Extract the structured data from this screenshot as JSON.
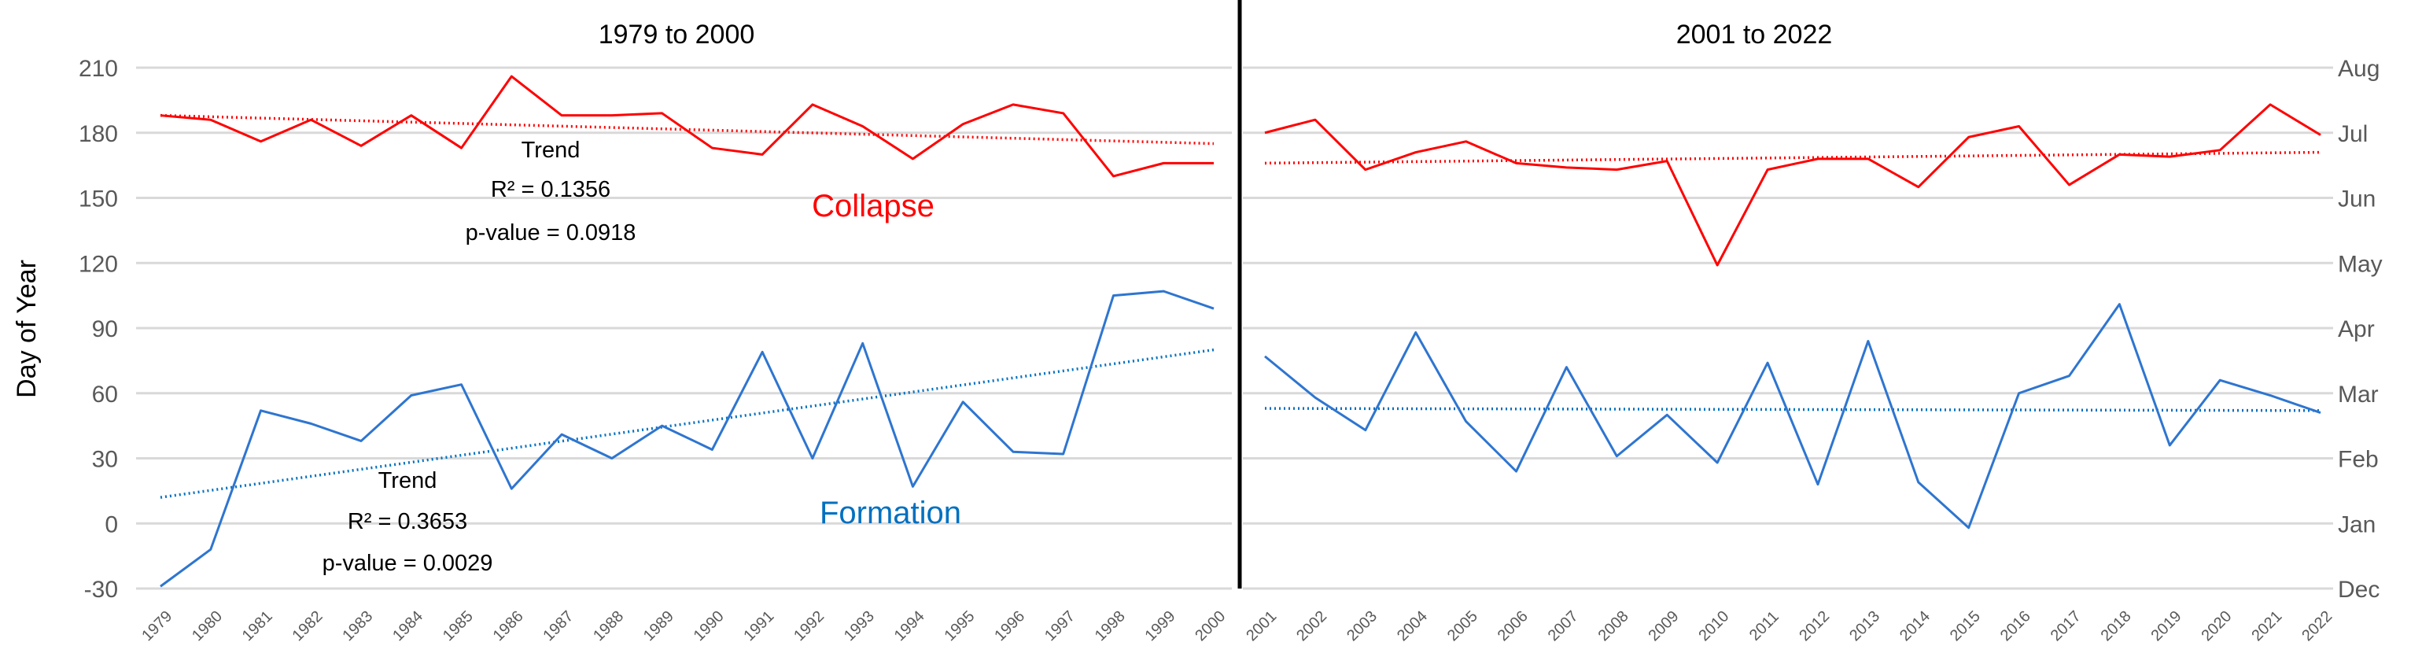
{
  "chart_data": [
    {
      "type": "line",
      "title": "1979 to 2000",
      "ylabel": "Day of Year",
      "ylim": [
        -30,
        210
      ],
      "yticks": [
        -30,
        0,
        30,
        60,
        90,
        120,
        150,
        180,
        210
      ],
      "grid": true,
      "x": [
        "1979",
        "1980",
        "1981",
        "1982",
        "1983",
        "1984",
        "1985",
        "1986",
        "1987",
        "1988",
        "1989",
        "1990",
        "1991",
        "1992",
        "1993",
        "1994",
        "1995",
        "1996",
        "1997",
        "1998",
        "1999",
        "2000"
      ],
      "series": [
        {
          "name": "Collapse",
          "color": "#FF0000",
          "values": [
            188,
            186,
            176,
            186,
            174,
            188,
            173,
            206,
            188,
            188,
            189,
            173,
            170,
            193,
            183,
            168,
            184,
            193,
            189,
            160,
            166,
            166
          ],
          "trend": {
            "start": 188,
            "end": 175,
            "label": "Trend",
            "r2": "R² = 0.1356",
            "p": "p-value = 0.0918"
          }
        },
        {
          "name": "Formation",
          "color": "#0070C0",
          "values": [
            -29,
            -12,
            52,
            46,
            38,
            59,
            64,
            16,
            41,
            30,
            45,
            34,
            79,
            30,
            83,
            17,
            56,
            33,
            32,
            105,
            107,
            99
          ],
          "trend": {
            "start": 12,
            "end": 80,
            "label": "Trend",
            "r2": "R² = 0.3653",
            "p": "p-value = 0.0029"
          }
        }
      ]
    },
    {
      "type": "line",
      "title": "2001 to 2022",
      "ylim": [
        -30,
        210
      ],
      "yticks_right": [
        "Dec",
        "Jan",
        "Feb",
        "Mar",
        "Apr",
        "May",
        "Jun",
        "Jul",
        "Aug"
      ],
      "grid": true,
      "x": [
        "2001",
        "2002",
        "2003",
        "2004",
        "2005",
        "2006",
        "2007",
        "2008",
        "2009",
        "2010",
        "2011",
        "2012",
        "2013",
        "2014",
        "2015",
        "2016",
        "2017",
        "2018",
        "2019",
        "2020",
        "2021",
        "2022"
      ],
      "series": [
        {
          "color": "#FF0000",
          "values": [
            180,
            186,
            163,
            171,
            176,
            166,
            164,
            163,
            167,
            119,
            163,
            168,
            168,
            155,
            178,
            183,
            156,
            170,
            169,
            172,
            193,
            179
          ],
          "trend": {
            "start": 166,
            "end": 171
          }
        },
        {
          "color": "#0070C0",
          "values": [
            77,
            58,
            43,
            88,
            47,
            24,
            72,
            31,
            50,
            28,
            74,
            18,
            84,
            19,
            -2,
            60,
            68,
            101,
            36,
            66,
            59,
            51
          ],
          "trend": {
            "start": 53,
            "end": 52
          }
        }
      ]
    }
  ]
}
